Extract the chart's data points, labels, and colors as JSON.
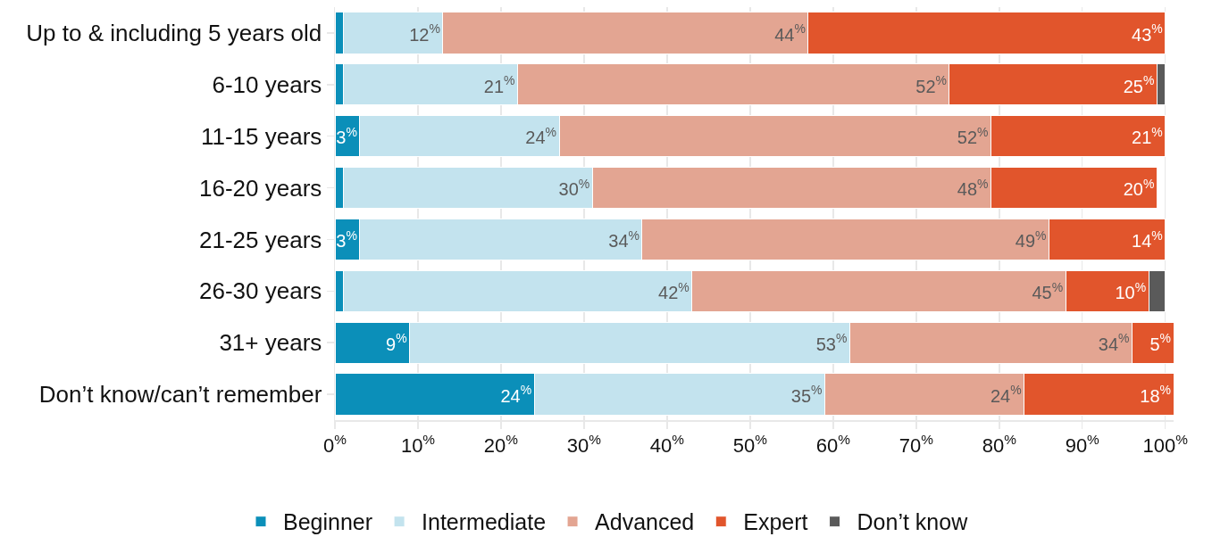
{
  "chart_data": {
    "type": "bar",
    "orientation": "horizontal",
    "stacked": true,
    "categories": [
      "Up to & including 5 years old",
      "6-10 years",
      "11-15 years",
      "16-20 years",
      "21-25 years",
      "26-30 years",
      "31+ years",
      "Don’t know/can’t remember"
    ],
    "series": [
      {
        "name": "Beginner",
        "color": "#0b8fb9",
        "values": [
          1,
          1,
          3,
          1,
          3,
          1,
          9,
          24
        ],
        "value_labels": [
          null,
          null,
          "3$^{%}$",
          null,
          "3$^{%}$",
          null,
          "9$^{%}$",
          "24$^{%}$"
        ]
      },
      {
        "name": "Intermediate",
        "color": "#c3e3ee",
        "values": [
          12,
          21,
          24,
          30,
          34,
          42,
          53,
          35
        ],
        "value_labels": [
          "12$^{%}$",
          "21$^{%}$",
          "24$^{%}$",
          "30$^{%}$",
          "34$^{%}$",
          "42$^{%}$",
          "53$^{%}$",
          "35$^{%}$"
        ]
      },
      {
        "name": "Advanced",
        "color": "#e3a592",
        "values": [
          44,
          52,
          52,
          48,
          49,
          45,
          34,
          24
        ],
        "value_labels": [
          "44$^{%}$",
          "52$^{%}$",
          "52$^{%}$",
          "48$^{%}$",
          "49$^{%}$",
          "45$^{%}$",
          "34$^{%}$",
          "24$^{%}$"
        ]
      },
      {
        "name": "Expert",
        "color": "#e1552c",
        "values": [
          43,
          25,
          21,
          20,
          14,
          10,
          5,
          18
        ],
        "value_labels": [
          "43$^{%}$",
          "25$^{%}$",
          "21$^{%}$",
          "20$^{%}$",
          "14$^{%}$",
          "10$^{%}$",
          "5$^{%}$",
          "18$^{%}$"
        ]
      },
      {
        "name": "Don’t know",
        "color": "#5a5a5a",
        "values": [
          null,
          1,
          null,
          null,
          null,
          2,
          null,
          null
        ]
      }
    ],
    "xlim": [
      0,
      101
    ],
    "xticks": [
      {
        "value": 0,
        "label": "0$^{%}$"
      },
      {
        "value": 10,
        "label": "10$^{%}$"
      },
      {
        "value": 20,
        "label": "20$^{%}$"
      },
      {
        "value": 30,
        "label": "30$^{%}$"
      },
      {
        "value": 40,
        "label": "40$^{%}$"
      },
      {
        "value": 50,
        "label": "50$^{%}$"
      },
      {
        "value": 60,
        "label": "60$^{%}$"
      },
      {
        "value": 70,
        "label": "70$^{%}$"
      },
      {
        "value": 80,
        "label": "80$^{%}$"
      },
      {
        "value": 90,
        "label": "90$^{%}$"
      },
      {
        "value": 100,
        "label": "100$^{%}$"
      }
    ],
    "grid": "x",
    "legend": "bottom"
  }
}
